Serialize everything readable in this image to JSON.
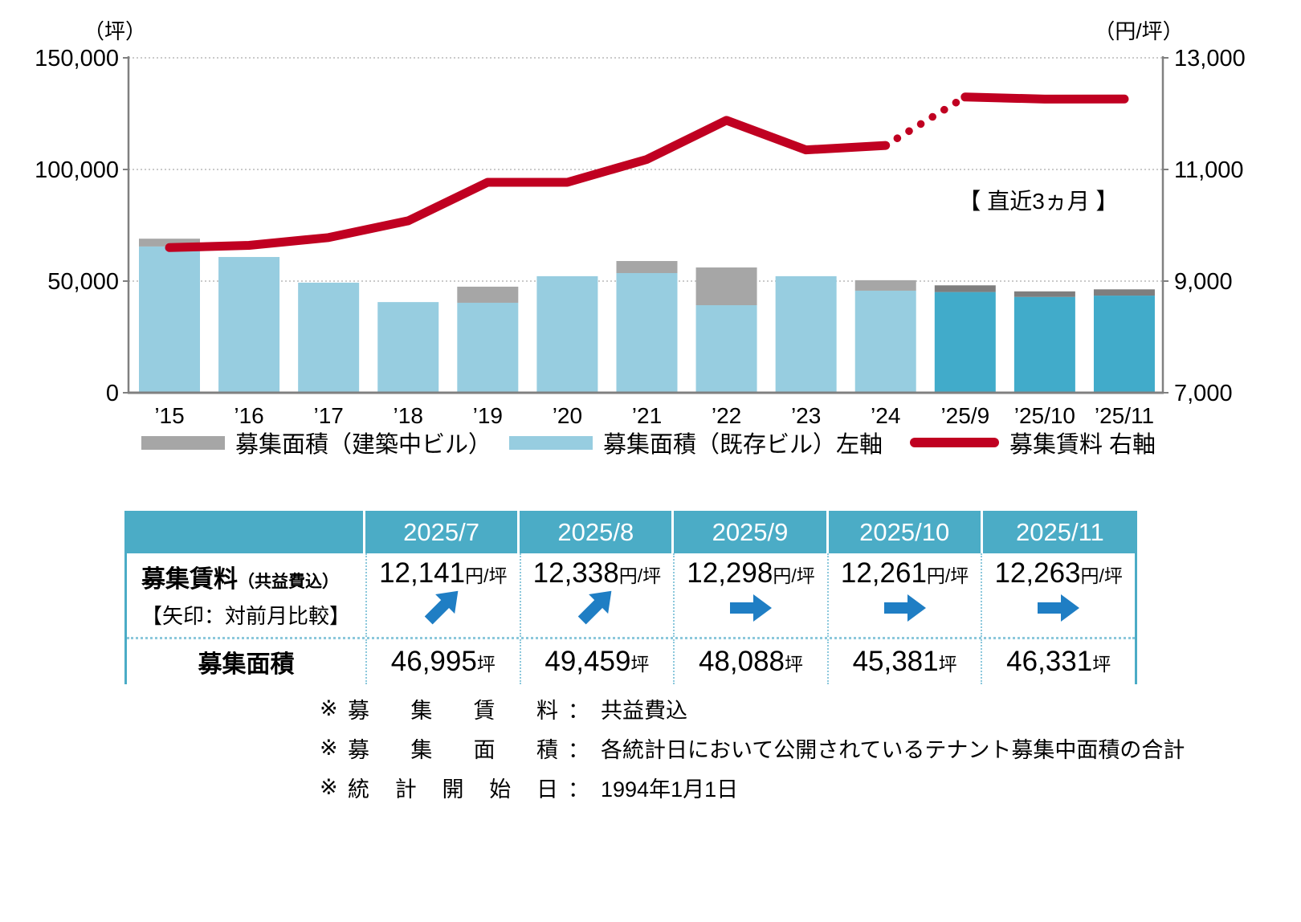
{
  "chart_data": {
    "type": "combo-bar-line",
    "categories": [
      "’15",
      "’16",
      "’17",
      "’18",
      "’19",
      "’20",
      "’21",
      "’22",
      "’23",
      "’24",
      "’25/9",
      "’25/10",
      "’25/11"
    ],
    "series": [
      {
        "name": "募集面積（建築中ビル）",
        "type": "bar",
        "axis": "left",
        "role": "stack-top",
        "values": [
          3500,
          0,
          0,
          0,
          7200,
          0,
          5400,
          16900,
          0,
          4700,
          3000,
          2500,
          2800
        ],
        "color": "#A6A6A6",
        "recent_color": "#7E7E7E"
      },
      {
        "name": "募集面積（既存ビル）左軸",
        "type": "bar",
        "axis": "left",
        "role": "stack-base",
        "values": [
          65500,
          60800,
          49300,
          40600,
          40300,
          52200,
          53600,
          39200,
          52200,
          45700,
          45100,
          42900,
          43500
        ],
        "color": "#97CDE0",
        "recent_color": "#41ABCA"
      },
      {
        "name": "募集賃料 右軸",
        "type": "line",
        "axis": "right",
        "values": [
          9600,
          9640,
          9780,
          10080,
          10770,
          10770,
          11180,
          11880,
          11350,
          11430,
          12298,
          12261,
          12263
        ],
        "color": "#C00021",
        "dotted_from": 9,
        "dotted_to": 10
      }
    ],
    "recent_start_index": 10,
    "left_axis": {
      "unit": "（坪）",
      "min": 0,
      "max": 150000,
      "tick_values": [
        0,
        50000,
        100000,
        150000
      ],
      "tick_labels": [
        "0",
        "50,000",
        "100,000",
        "150,000"
      ]
    },
    "right_axis": {
      "unit": "（円/坪）",
      "min": 7000,
      "max": 13000,
      "tick_values": [
        7000,
        9000,
        11000,
        13000
      ],
      "tick_labels": [
        "7,000",
        "9,000",
        "11,000",
        "13,000"
      ]
    },
    "annotation": "【 直近3ヵ月 】",
    "grid": "horizontal-dotted",
    "legend_position": "bottom"
  },
  "legend": {
    "items": [
      {
        "label": "募集面積（建築中ビル）",
        "swatch": "bar",
        "color": "#A6A6A6"
      },
      {
        "label": "募集面積（既存ビル）左軸",
        "swatch": "bar",
        "color": "#97CDE0"
      },
      {
        "label": "募集賃料 右軸",
        "swatch": "line",
        "color": "#C00021"
      }
    ]
  },
  "table": {
    "header_bg": "#4BACC6",
    "columns": [
      "2025/7",
      "2025/8",
      "2025/9",
      "2025/10",
      "2025/11"
    ],
    "rent_row": {
      "label": "募集賃料",
      "label_sub": "（共益費込）",
      "arrow_note": "【矢印：対前月比較】",
      "values": [
        "12,141",
        "12,338",
        "12,298",
        "12,261",
        "12,263"
      ],
      "unit": "円/坪",
      "arrows": [
        "up-right",
        "up-right",
        "right",
        "right",
        "right"
      ],
      "arrow_color": "#1F7EC4"
    },
    "area_row": {
      "label": "募集面積",
      "values": [
        "46,995",
        "49,459",
        "48,088",
        "45,381",
        "46,331"
      ],
      "unit": "坪"
    }
  },
  "notes": [
    {
      "mark": "※",
      "label": "募集賃料",
      "separator": "：",
      "text": "共益費込"
    },
    {
      "mark": "※",
      "label": "募集面積",
      "separator": "：",
      "text": "各統計日において公開されているテナント募集中面積の合計"
    },
    {
      "mark": "※",
      "label": "統計開始日",
      "separator": "：",
      "text": "1994年1月1日"
    }
  ]
}
